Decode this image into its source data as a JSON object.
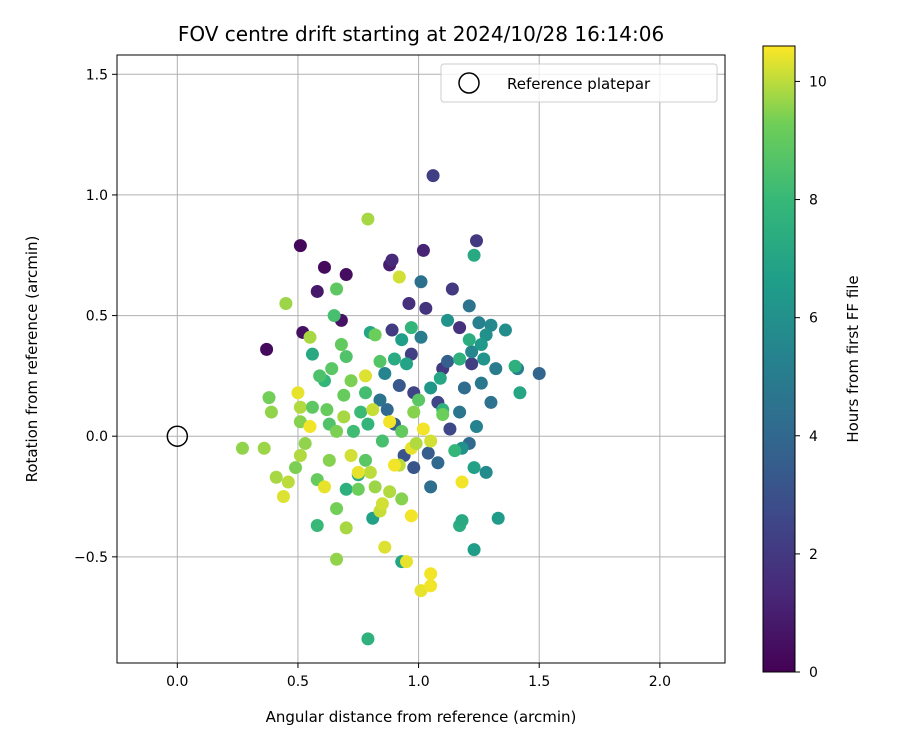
{
  "chart_data": {
    "type": "scatter",
    "title": "FOV centre drift starting at 2024/10/28 16:14:06",
    "xlabel": "Angular distance from reference (arcmin)",
    "ylabel": "Rotation from reference (arcmin)",
    "xlim": [
      -0.25,
      2.27
    ],
    "ylim": [
      -0.94,
      1.58
    ],
    "xticks": [
      0.0,
      0.5,
      1.0,
      1.5,
      2.0
    ],
    "xtick_labels": [
      "0.0",
      "0.5",
      "1.0",
      "1.5",
      "2.0"
    ],
    "yticks": [
      -0.5,
      0.0,
      0.5,
      1.0,
      1.5
    ],
    "ytick_labels": [
      "−0.5",
      "0.0",
      "0.5",
      "1.0",
      "1.5"
    ],
    "grid": true,
    "legend": {
      "placement": "upper-right",
      "entries": [
        {
          "label": "Reference platepar",
          "marker": "open-circle",
          "x": 0.0,
          "y": 0.0
        }
      ]
    },
    "colorbar": {
      "label": "Hours from first FF file",
      "colormap": "viridis",
      "range": [
        0,
        10.6
      ],
      "ticks": [
        0,
        2,
        4,
        6,
        8,
        10
      ],
      "tick_labels": [
        "0",
        "2",
        "4",
        "6",
        "8",
        "10"
      ]
    },
    "points": [
      {
        "x": 0.37,
        "y": 0.36,
        "c": 0.3
      },
      {
        "x": 0.51,
        "y": 0.79,
        "c": 0.2
      },
      {
        "x": 0.61,
        "y": 0.7,
        "c": 0.3
      },
      {
        "x": 0.7,
        "y": 0.67,
        "c": 0.4
      },
      {
        "x": 0.52,
        "y": 0.43,
        "c": 0.5
      },
      {
        "x": 0.68,
        "y": 0.48,
        "c": 0.6
      },
      {
        "x": 0.58,
        "y": 0.6,
        "c": 0.8
      },
      {
        "x": 0.88,
        "y": 0.71,
        "c": 1.0
      },
      {
        "x": 1.02,
        "y": 0.77,
        "c": 1.2
      },
      {
        "x": 0.89,
        "y": 0.73,
        "c": 1.4
      },
      {
        "x": 1.06,
        "y": 1.08,
        "c": 2.2
      },
      {
        "x": 1.24,
        "y": 0.81,
        "c": 2.0
      },
      {
        "x": 0.96,
        "y": 0.55,
        "c": 1.6
      },
      {
        "x": 1.03,
        "y": 0.53,
        "c": 1.8
      },
      {
        "x": 1.14,
        "y": 0.61,
        "c": 2.0
      },
      {
        "x": 1.17,
        "y": 0.45,
        "c": 1.7
      },
      {
        "x": 0.89,
        "y": 0.44,
        "c": 2.1
      },
      {
        "x": 0.97,
        "y": 0.34,
        "c": 2.3
      },
      {
        "x": 1.1,
        "y": 0.28,
        "c": 2.0
      },
      {
        "x": 1.08,
        "y": 0.14,
        "c": 2.5
      },
      {
        "x": 0.98,
        "y": 0.18,
        "c": 2.4
      },
      {
        "x": 1.13,
        "y": 0.03,
        "c": 2.6
      },
      {
        "x": 1.22,
        "y": 0.3,
        "c": 2.2
      },
      {
        "x": 1.5,
        "y": 0.26,
        "c": 3.9
      },
      {
        "x": 1.21,
        "y": 0.54,
        "c": 4.6
      },
      {
        "x": 1.01,
        "y": 0.64,
        "c": 4.4
      },
      {
        "x": 1.25,
        "y": 0.47,
        "c": 5.2
      },
      {
        "x": 1.3,
        "y": 0.46,
        "c": 5.6
      },
      {
        "x": 1.36,
        "y": 0.44,
        "c": 5.8
      },
      {
        "x": 1.28,
        "y": 0.42,
        "c": 6.0
      },
      {
        "x": 1.22,
        "y": 0.35,
        "c": 5.5
      },
      {
        "x": 1.12,
        "y": 0.31,
        "c": 3.6
      },
      {
        "x": 1.27,
        "y": 0.32,
        "c": 6.2
      },
      {
        "x": 1.32,
        "y": 0.28,
        "c": 5.0
      },
      {
        "x": 1.41,
        "y": 0.28,
        "c": 5.1
      },
      {
        "x": 1.26,
        "y": 0.22,
        "c": 4.8
      },
      {
        "x": 1.19,
        "y": 0.2,
        "c": 4.2
      },
      {
        "x": 1.3,
        "y": 0.14,
        "c": 4.5
      },
      {
        "x": 1.24,
        "y": 0.04,
        "c": 5.3
      },
      {
        "x": 1.21,
        "y": -0.03,
        "c": 4.1
      },
      {
        "x": 1.17,
        "y": 0.1,
        "c": 4.7
      },
      {
        "x": 1.04,
        "y": -0.07,
        "c": 3.5
      },
      {
        "x": 1.08,
        "y": -0.11,
        "c": 4.0
      },
      {
        "x": 0.98,
        "y": -0.13,
        "c": 3.2
      },
      {
        "x": 1.05,
        "y": -0.21,
        "c": 4.3
      },
      {
        "x": 0.94,
        "y": -0.08,
        "c": 3.1
      },
      {
        "x": 0.9,
        "y": 0.05,
        "c": 3.7
      },
      {
        "x": 0.87,
        "y": 0.11,
        "c": 4.1
      },
      {
        "x": 0.84,
        "y": 0.15,
        "c": 4.6
      },
      {
        "x": 0.92,
        "y": 0.21,
        "c": 3.3
      },
      {
        "x": 0.86,
        "y": 0.26,
        "c": 5.4
      },
      {
        "x": 1.01,
        "y": 0.41,
        "c": 5.0
      },
      {
        "x": 1.12,
        "y": 0.48,
        "c": 6.1
      },
      {
        "x": 1.26,
        "y": 0.38,
        "c": 6.4
      },
      {
        "x": 1.28,
        "y": -0.15,
        "c": 5.7
      },
      {
        "x": 1.18,
        "y": -0.05,
        "c": 6.0
      },
      {
        "x": 1.33,
        "y": -0.34,
        "c": 6.5
      },
      {
        "x": 1.23,
        "y": -0.13,
        "c": 6.8
      },
      {
        "x": 1.23,
        "y": -0.47,
        "c": 6.6
      },
      {
        "x": 1.42,
        "y": 0.18,
        "c": 7.0
      },
      {
        "x": 1.4,
        "y": 0.29,
        "c": 7.5
      },
      {
        "x": 1.23,
        "y": 0.75,
        "c": 7.2
      },
      {
        "x": 1.21,
        "y": 0.4,
        "c": 7.4
      },
      {
        "x": 1.17,
        "y": 0.32,
        "c": 7.6
      },
      {
        "x": 1.09,
        "y": 0.24,
        "c": 7.1
      },
      {
        "x": 1.05,
        "y": 0.2,
        "c": 6.3
      },
      {
        "x": 0.93,
        "y": 0.4,
        "c": 6.7
      },
      {
        "x": 0.95,
        "y": 0.3,
        "c": 6.9
      },
      {
        "x": 0.8,
        "y": 0.43,
        "c": 7.0
      },
      {
        "x": 0.97,
        "y": 0.45,
        "c": 7.8
      },
      {
        "x": 0.9,
        "y": 0.32,
        "c": 7.3
      },
      {
        "x": 1.1,
        "y": 0.11,
        "c": 7.7
      },
      {
        "x": 1.15,
        "y": -0.06,
        "c": 7.9
      },
      {
        "x": 1.17,
        "y": -0.37,
        "c": 7.4
      },
      {
        "x": 1.18,
        "y": -0.35,
        "c": 7.2
      },
      {
        "x": 0.93,
        "y": -0.52,
        "c": 7.0
      },
      {
        "x": 0.81,
        "y": -0.34,
        "c": 6.8
      },
      {
        "x": 0.79,
        "y": -0.84,
        "c": 7.6
      },
      {
        "x": 0.58,
        "y": -0.37,
        "c": 8.0
      },
      {
        "x": 0.7,
        "y": -0.22,
        "c": 7.5
      },
      {
        "x": 0.75,
        "y": -0.16,
        "c": 7.3
      },
      {
        "x": 0.56,
        "y": 0.34,
        "c": 7.2
      },
      {
        "x": 0.61,
        "y": 0.23,
        "c": 7.9
      },
      {
        "x": 0.65,
        "y": 0.5,
        "c": 8.4
      },
      {
        "x": 0.66,
        "y": 0.61,
        "c": 8.9
      },
      {
        "x": 0.7,
        "y": 0.33,
        "c": 8.6
      },
      {
        "x": 0.82,
        "y": 0.42,
        "c": 9.2
      },
      {
        "x": 0.84,
        "y": 0.31,
        "c": 8.7
      },
      {
        "x": 0.55,
        "y": 0.41,
        "c": 9.8
      },
      {
        "x": 0.45,
        "y": 0.55,
        "c": 9.7
      },
      {
        "x": 0.79,
        "y": 0.9,
        "c": 9.8
      },
      {
        "x": 0.92,
        "y": 0.66,
        "c": 10.2
      },
      {
        "x": 0.68,
        "y": 0.38,
        "c": 9.0
      },
      {
        "x": 0.64,
        "y": 0.28,
        "c": 8.8
      },
      {
        "x": 0.59,
        "y": 0.25,
        "c": 8.5
      },
      {
        "x": 0.72,
        "y": 0.23,
        "c": 9.4
      },
      {
        "x": 0.78,
        "y": 0.25,
        "c": 10.3
      },
      {
        "x": 0.78,
        "y": 0.18,
        "c": 8.3
      },
      {
        "x": 0.69,
        "y": 0.17,
        "c": 9.1
      },
      {
        "x": 0.38,
        "y": 0.16,
        "c": 9.3
      },
      {
        "x": 0.39,
        "y": 0.1,
        "c": 9.6
      },
      {
        "x": 0.5,
        "y": 0.18,
        "c": 10.4
      },
      {
        "x": 0.51,
        "y": 0.12,
        "c": 9.9
      },
      {
        "x": 0.51,
        "y": 0.06,
        "c": 9.5
      },
      {
        "x": 0.56,
        "y": 0.12,
        "c": 8.9
      },
      {
        "x": 0.62,
        "y": 0.11,
        "c": 9.1
      },
      {
        "x": 0.63,
        "y": 0.05,
        "c": 8.6
      },
      {
        "x": 0.66,
        "y": 0.02,
        "c": 9.4
      },
      {
        "x": 0.73,
        "y": 0.02,
        "c": 8.2
      },
      {
        "x": 0.76,
        "y": 0.1,
        "c": 8.1
      },
      {
        "x": 0.81,
        "y": 0.11,
        "c": 10.1
      },
      {
        "x": 0.79,
        "y": 0.05,
        "c": 7.8
      },
      {
        "x": 0.85,
        "y": -0.02,
        "c": 8.4
      },
      {
        "x": 0.88,
        "y": 0.06,
        "c": 10.5
      },
      {
        "x": 0.93,
        "y": 0.02,
        "c": 9.0
      },
      {
        "x": 0.92,
        "y": -0.12,
        "c": 10.0
      },
      {
        "x": 0.97,
        "y": -0.05,
        "c": 10.4
      },
      {
        "x": 1.02,
        "y": 0.03,
        "c": 10.5
      },
      {
        "x": 1.05,
        "y": -0.02,
        "c": 10.2
      },
      {
        "x": 0.98,
        "y": 0.1,
        "c": 9.5
      },
      {
        "x": 1.0,
        "y": 0.15,
        "c": 8.8
      },
      {
        "x": 1.1,
        "y": 0.09,
        "c": 9.2
      },
      {
        "x": 1.18,
        "y": -0.19,
        "c": 10.5
      },
      {
        "x": 0.36,
        "y": -0.05,
        "c": 9.7
      },
      {
        "x": 0.27,
        "y": -0.05,
        "c": 9.6
      },
      {
        "x": 0.41,
        "y": -0.17,
        "c": 9.8
      },
      {
        "x": 0.44,
        "y": -0.25,
        "c": 10.3
      },
      {
        "x": 0.46,
        "y": -0.19,
        "c": 10.0
      },
      {
        "x": 0.49,
        "y": -0.13,
        "c": 9.4
      },
      {
        "x": 0.51,
        "y": -0.08,
        "c": 9.9
      },
      {
        "x": 0.53,
        "y": -0.03,
        "c": 9.6
      },
      {
        "x": 0.55,
        "y": 0.04,
        "c": 10.5
      },
      {
        "x": 0.58,
        "y": -0.18,
        "c": 9.1
      },
      {
        "x": 0.61,
        "y": -0.21,
        "c": 10.4
      },
      {
        "x": 0.63,
        "y": -0.1,
        "c": 9.5
      },
      {
        "x": 0.66,
        "y": -0.3,
        "c": 9.3
      },
      {
        "x": 0.66,
        "y": -0.51,
        "c": 9.6
      },
      {
        "x": 0.7,
        "y": -0.38,
        "c": 9.8
      },
      {
        "x": 0.72,
        "y": -0.08,
        "c": 10.2
      },
      {
        "x": 0.75,
        "y": -0.22,
        "c": 9.2
      },
      {
        "x": 0.78,
        "y": -0.1,
        "c": 8.8
      },
      {
        "x": 0.8,
        "y": -0.15,
        "c": 10.0
      },
      {
        "x": 0.82,
        "y": -0.21,
        "c": 9.7
      },
      {
        "x": 0.84,
        "y": -0.31,
        "c": 10.1
      },
      {
        "x": 0.86,
        "y": -0.46,
        "c": 10.3
      },
      {
        "x": 0.88,
        "y": -0.23,
        "c": 9.9
      },
      {
        "x": 0.9,
        "y": -0.12,
        "c": 10.5
      },
      {
        "x": 0.93,
        "y": -0.26,
        "c": 9.5
      },
      {
        "x": 0.95,
        "y": -0.52,
        "c": 10.4
      },
      {
        "x": 0.97,
        "y": -0.33,
        "c": 10.5
      },
      {
        "x": 0.99,
        "y": -0.03,
        "c": 9.9
      },
      {
        "x": 1.01,
        "y": -0.64,
        "c": 10.4
      },
      {
        "x": 1.05,
        "y": -0.57,
        "c": 10.5
      },
      {
        "x": 1.05,
        "y": -0.62,
        "c": 10.5
      },
      {
        "x": 0.85,
        "y": -0.28,
        "c": 10.2
      },
      {
        "x": 0.75,
        "y": -0.15,
        "c": 10.4
      },
      {
        "x": 0.69,
        "y": 0.08,
        "c": 9.8
      }
    ]
  }
}
